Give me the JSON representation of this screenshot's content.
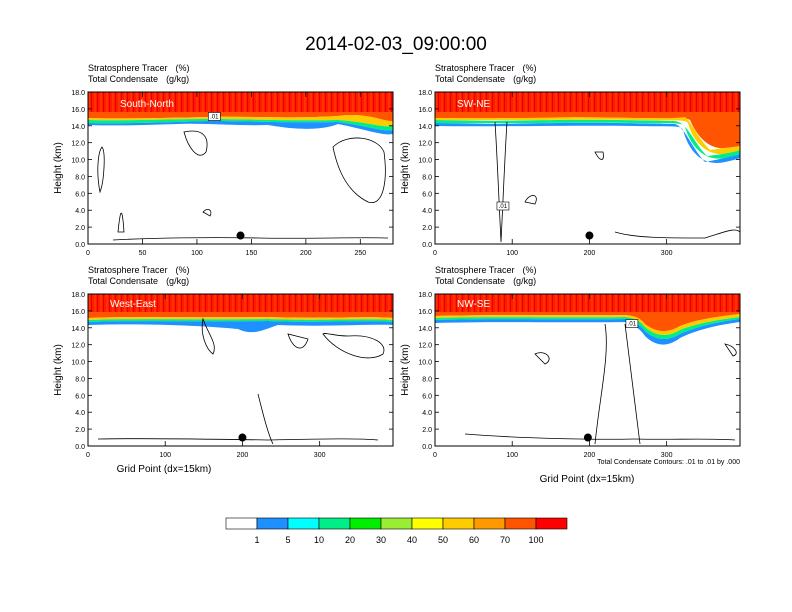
{
  "title": "2014-02-03_09:00:00",
  "panel_header": {
    "line1_label": "Stratosphere Tracer",
    "line1_units": "(%)",
    "line2_label": "Total Condensate",
    "line2_units": "(g/kg)"
  },
  "axis": {
    "ylabel": "Height (km)",
    "xlabel": "Grid Point (dx=15km)"
  },
  "footnote": "Total Condensate Contours: .01 to .01 by .000",
  "colorbar": {
    "levels": [
      "1",
      "5",
      "10",
      "20",
      "30",
      "40",
      "50",
      "60",
      "70",
      "100"
    ],
    "colors": [
      "#ffffff",
      "#1e90ff",
      "#00ffff",
      "#00ee88",
      "#00ee00",
      "#99ee33",
      "#ffff00",
      "#ffcc00",
      "#ff9900",
      "#ff5500",
      "#ff0000"
    ]
  },
  "chart_data": [
    {
      "type": "contour",
      "title": "South-North",
      "ylim": [
        0,
        18
      ],
      "yticks": [
        "0.0",
        "2.0",
        "4.0",
        "6.0",
        "8.0",
        "10.0",
        "12.0",
        "14.0",
        "16.0",
        "18.0"
      ],
      "xlim": [
        0,
        280
      ],
      "xticks": [
        {
          "value": 0,
          "label": "0"
        },
        {
          "value": 50,
          "label": "50"
        },
        {
          "value": 100,
          "label": "100"
        },
        {
          "value": 150,
          "label": "150"
        },
        {
          "value": 200,
          "label": "200"
        },
        {
          "value": 250,
          "label": "250"
        }
      ],
      "contour_label": ".01",
      "contour_label_x": 116,
      "contour_label_y": 15.1,
      "marker": {
        "x": 140,
        "y": 1.0
      },
      "tropopause_km": [
        [
          0,
          14.6
        ],
        [
          20,
          14.7
        ],
        [
          40,
          14.5
        ],
        [
          60,
          14.9
        ],
        [
          80,
          14.6
        ],
        [
          100,
          14.5
        ],
        [
          115,
          14.9
        ],
        [
          135,
          15.0
        ],
        [
          145,
          14.6
        ],
        [
          160,
          14.8
        ],
        [
          180,
          14.5
        ],
        [
          200,
          14.9
        ],
        [
          220,
          14.7
        ],
        [
          240,
          14.5
        ],
        [
          260,
          14.0
        ],
        [
          280,
          14.3
        ]
      ]
    },
    {
      "type": "contour",
      "title": "SW-NE",
      "ylim": [
        0,
        18
      ],
      "yticks": [
        "0.0",
        "2.0",
        "4.0",
        "6.0",
        "8.0",
        "10.0",
        "12.0",
        "14.0",
        "16.0",
        "18.0"
      ],
      "xlim": [
        0,
        395
      ],
      "xticks": [
        {
          "value": 0,
          "label": "0"
        },
        {
          "value": 100,
          "label": "100"
        },
        {
          "value": 200,
          "label": "200"
        },
        {
          "value": 300,
          "label": "300"
        }
      ],
      "contour_label": ".01",
      "contour_label_x": 88,
      "contour_label_y": 4.5,
      "marker": {
        "x": 200,
        "y": 1.0
      },
      "tropopause_km": [
        [
          0,
          14.5
        ],
        [
          40,
          14.9
        ],
        [
          80,
          14.5
        ],
        [
          120,
          15.0
        ],
        [
          160,
          14.6
        ],
        [
          200,
          14.8
        ],
        [
          240,
          14.7
        ],
        [
          280,
          14.6
        ],
        [
          320,
          14.5
        ],
        [
          330,
          12.5
        ],
        [
          345,
          10.0
        ],
        [
          365,
          9.5
        ],
        [
          380,
          10.3
        ],
        [
          395,
          11.5
        ]
      ]
    },
    {
      "type": "contour",
      "title": "West-East",
      "ylim": [
        0,
        18
      ],
      "yticks": [
        "0.0",
        "2.0",
        "4.0",
        "6.0",
        "8.0",
        "10.0",
        "12.0",
        "14.0",
        "16.0",
        "18.0"
      ],
      "xlim": [
        0,
        395
      ],
      "xticks": [
        {
          "value": 0,
          "label": "0"
        },
        {
          "value": 100,
          "label": "100"
        },
        {
          "value": 200,
          "label": "200"
        },
        {
          "value": 300,
          "label": "300"
        }
      ],
      "marker": {
        "x": 200,
        "y": 1.0
      },
      "tropopause_km": [
        [
          0,
          14.9
        ],
        [
          40,
          15.1
        ],
        [
          80,
          14.8
        ],
        [
          120,
          14.9
        ],
        [
          160,
          14.7
        ],
        [
          200,
          14.9
        ],
        [
          240,
          14.2
        ],
        [
          280,
          14.6
        ],
        [
          320,
          14.8
        ],
        [
          360,
          14.7
        ],
        [
          395,
          14.9
        ]
      ]
    },
    {
      "type": "contour",
      "title": "NW-SE",
      "ylim": [
        0,
        18
      ],
      "yticks": [
        "0.0",
        "2.0",
        "4.0",
        "6.0",
        "8.0",
        "10.0",
        "12.0",
        "14.0",
        "16.0",
        "18.0"
      ],
      "xlim": [
        0,
        395
      ],
      "xticks": [
        {
          "value": 0,
          "label": "0"
        },
        {
          "value": 100,
          "label": "100"
        },
        {
          "value": 200,
          "label": "200"
        },
        {
          "value": 300,
          "label": "300"
        }
      ],
      "contour_label": ".01",
      "contour_label_x": 255,
      "contour_label_y": 14.5,
      "marker": {
        "x": 198,
        "y": 1.0
      },
      "tropopause_km": [
        [
          0,
          14.8
        ],
        [
          40,
          15.0
        ],
        [
          80,
          14.7
        ],
        [
          120,
          14.9
        ],
        [
          160,
          14.6
        ],
        [
          200,
          14.8
        ],
        [
          240,
          15.0
        ],
        [
          260,
          14.0
        ],
        [
          280,
          13.0
        ],
        [
          300,
          12.0
        ],
        [
          320,
          13.2
        ],
        [
          340,
          14.5
        ],
        [
          360,
          14.8
        ],
        [
          395,
          14.7
        ]
      ]
    }
  ]
}
